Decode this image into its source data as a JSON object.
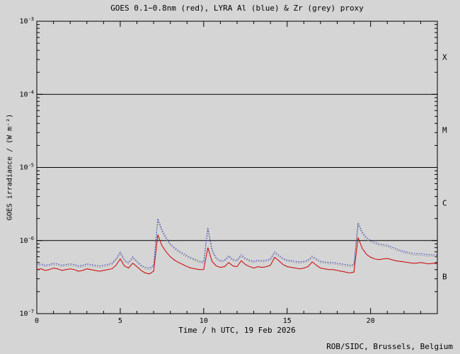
{
  "chart_data": {
    "type": "line",
    "title": "GOES 0.1−0.8nm (red), LYRA Al (blue) & Zr (grey) proxy",
    "xlabel": "Time / h UTC, 19 Feb 2026",
    "ylabel": "GOES irradiance / (W m⁻²)",
    "y_scale": "log",
    "x_range": [
      0,
      24
    ],
    "x_major_ticks": [
      0,
      5,
      10,
      15,
      20
    ],
    "x_minor_step": 1,
    "y_exp_range": [
      -7,
      -3
    ],
    "y_tick_exponents": [
      -3,
      -4,
      -5,
      -6,
      -7
    ],
    "reference_line_exponents": [
      -4,
      -5,
      -6
    ],
    "flare_zone_labels": [
      "X",
      "M",
      "C",
      "B"
    ],
    "unit_scale": 1e-07,
    "x_step_hours": 0.25,
    "series": [
      {
        "name": "GOES 0.1-0.8nm",
        "color": "#cc0000",
        "line_style": "solid",
        "values_e7": [
          4.0,
          4.1,
          3.9,
          4.0,
          4.2,
          4.1,
          3.9,
          4.0,
          4.1,
          4.0,
          3.8,
          3.9,
          4.1,
          4.0,
          3.9,
          3.8,
          3.9,
          4.0,
          4.1,
          4.6,
          5.6,
          4.5,
          4.2,
          4.9,
          4.4,
          3.9,
          3.6,
          3.5,
          3.8,
          12.0,
          8.5,
          7.0,
          6.0,
          5.4,
          5.0,
          4.7,
          4.4,
          4.2,
          4.1,
          4.0,
          4.0,
          8.0,
          5.2,
          4.5,
          4.3,
          4.4,
          5.0,
          4.5,
          4.4,
          5.3,
          4.7,
          4.4,
          4.2,
          4.4,
          4.3,
          4.4,
          4.6,
          5.9,
          5.3,
          4.7,
          4.4,
          4.3,
          4.2,
          4.1,
          4.2,
          4.4,
          5.1,
          4.6,
          4.2,
          4.1,
          4.0,
          4.0,
          3.9,
          3.8,
          3.7,
          3.6,
          3.7,
          11.0,
          7.8,
          6.5,
          5.9,
          5.6,
          5.5,
          5.6,
          5.7,
          5.5,
          5.3,
          5.2,
          5.1,
          5.0,
          4.9,
          4.9,
          5.0,
          4.9,
          4.8,
          4.9,
          4.8
        ]
      },
      {
        "name": "LYRA Al proxy",
        "color": "#2233bb",
        "line_style": "dotted",
        "values_e7": [
          4.7,
          4.8,
          4.6,
          4.7,
          4.9,
          4.8,
          4.6,
          4.7,
          4.8,
          4.7,
          4.5,
          4.6,
          4.8,
          4.7,
          4.6,
          4.5,
          4.6,
          4.7,
          4.9,
          5.6,
          7.0,
          5.4,
          5.0,
          6.0,
          5.2,
          4.6,
          4.3,
          4.2,
          4.6,
          20.0,
          14.0,
          11.0,
          9.0,
          8.0,
          7.2,
          6.7,
          6.2,
          5.8,
          5.5,
          5.2,
          5.1,
          15.0,
          7.5,
          5.8,
          5.3,
          5.4,
          6.2,
          5.5,
          5.4,
          6.4,
          5.7,
          5.4,
          5.2,
          5.4,
          5.3,
          5.4,
          5.6,
          7.0,
          6.3,
          5.7,
          5.4,
          5.3,
          5.2,
          5.1,
          5.2,
          5.4,
          6.1,
          5.6,
          5.2,
          5.1,
          5.0,
          5.0,
          4.9,
          4.8,
          4.7,
          4.6,
          4.7,
          17.5,
          13.0,
          11.0,
          10.0,
          9.4,
          9.0,
          8.8,
          8.6,
          8.2,
          7.8,
          7.4,
          7.1,
          6.9,
          6.7,
          6.6,
          6.6,
          6.5,
          6.4,
          6.4,
          6.3
        ]
      },
      {
        "name": "LYRA Zr proxy",
        "color": "#8a8a8a",
        "line_style": "dotted",
        "values_e7": [
          4.5,
          4.6,
          4.4,
          4.5,
          4.7,
          4.6,
          4.4,
          4.5,
          4.6,
          4.5,
          4.3,
          4.4,
          4.6,
          4.5,
          4.4,
          4.3,
          4.4,
          4.5,
          4.7,
          5.4,
          6.6,
          5.2,
          4.8,
          5.7,
          5.0,
          4.4,
          4.1,
          4.0,
          4.4,
          19.0,
          13.2,
          10.4,
          8.6,
          7.6,
          6.9,
          6.4,
          5.9,
          5.6,
          5.3,
          5.0,
          4.9,
          14.0,
          7.1,
          5.6,
          5.1,
          5.2,
          5.9,
          5.3,
          5.2,
          6.1,
          5.5,
          5.2,
          5.0,
          5.2,
          5.1,
          5.2,
          5.4,
          6.7,
          6.0,
          5.5,
          5.2,
          5.1,
          5.0,
          4.9,
          5.0,
          5.2,
          5.8,
          5.4,
          5.0,
          4.9,
          4.8,
          4.8,
          4.7,
          4.6,
          4.5,
          4.4,
          4.5,
          16.5,
          12.4,
          10.4,
          9.5,
          9.0,
          8.6,
          8.4,
          8.2,
          7.8,
          7.4,
          7.1,
          6.8,
          6.6,
          6.4,
          6.3,
          6.3,
          6.2,
          6.1,
          6.1,
          6.0
        ]
      }
    ]
  },
  "footer": {
    "credit": "ROB/SIDC, Brussels, Belgium"
  }
}
